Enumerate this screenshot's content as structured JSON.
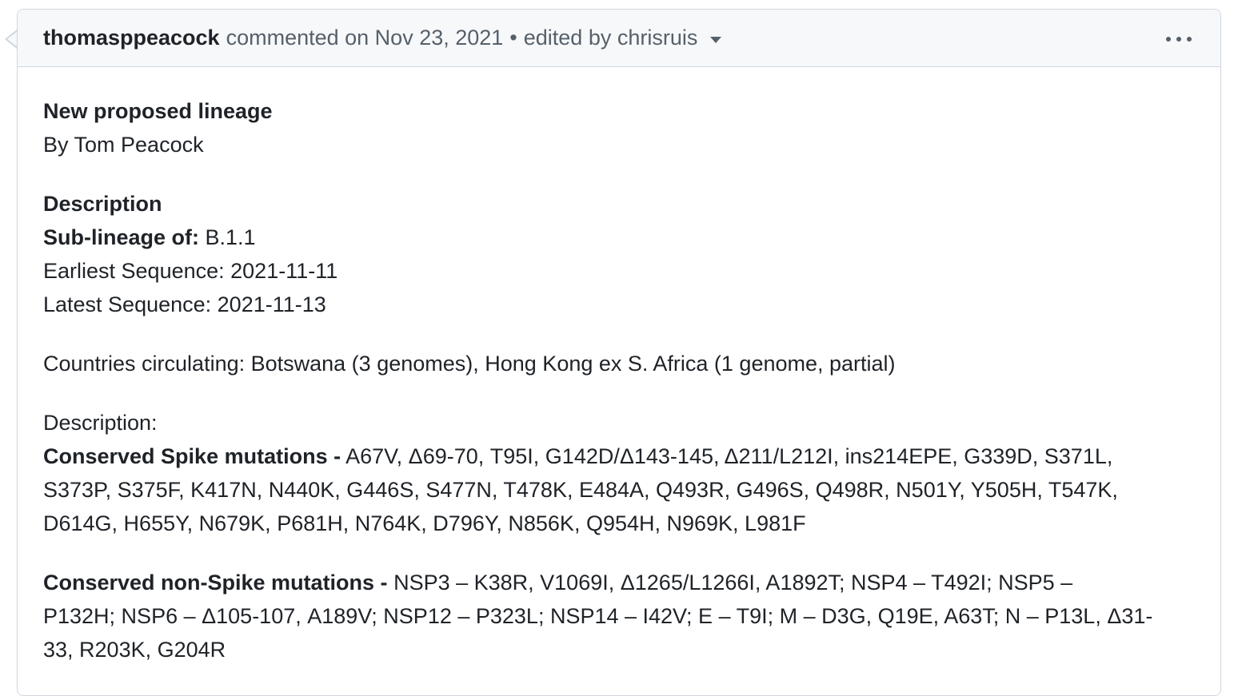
{
  "header": {
    "author": "thomasppeacock",
    "commented": "commented on Nov 23, 2021",
    "separator": "•",
    "edited": "edited by chrisruis"
  },
  "body": {
    "title": "New proposed lineage",
    "byline": "By Tom Peacock",
    "description_heading": "Description",
    "sublineage_label": "Sub-lineage of:",
    "sublineage_value": " B.1.1",
    "earliest": "Earliest Sequence: 2021-11-11",
    "latest": "Latest Sequence: 2021-11-13",
    "countries": "Countries circulating: Botswana (3 genomes), Hong Kong ex S. Africa (1 genome, partial)",
    "description2": "Description:",
    "spike_label": "Conserved Spike mutations -",
    "spike_line1": " A67V, Δ69-70, T95I, G142D/Δ143-145, Δ211/L212I, ins214EPE, G339D, S371L,",
    "spike_line2": "S373P, S375F, K417N, N440K, G446S, S477N, T478K, E484A, Q493R, G496S, Q498R, N501Y, Y505H, T547K,",
    "spike_line3": "D614G, H655Y, N679K, P681H, N764K, D796Y, N856K, Q954H, N969K, L981F",
    "nonspike_label": "Conserved non-Spike mutations -",
    "nonspike_line1": " NSP3 – K38R, V1069I, Δ1265/L1266I, A1892T; NSP4 – T492I; NSP5 –",
    "nonspike_line2": "P132H; NSP6 – Δ105-107, A189V; NSP12 – P323L; NSP14 – I42V; E – T9I; M – D3G, Q19E, A63T; N – P13L, Δ31-",
    "nonspike_line3": "33, R203K, G204R"
  }
}
